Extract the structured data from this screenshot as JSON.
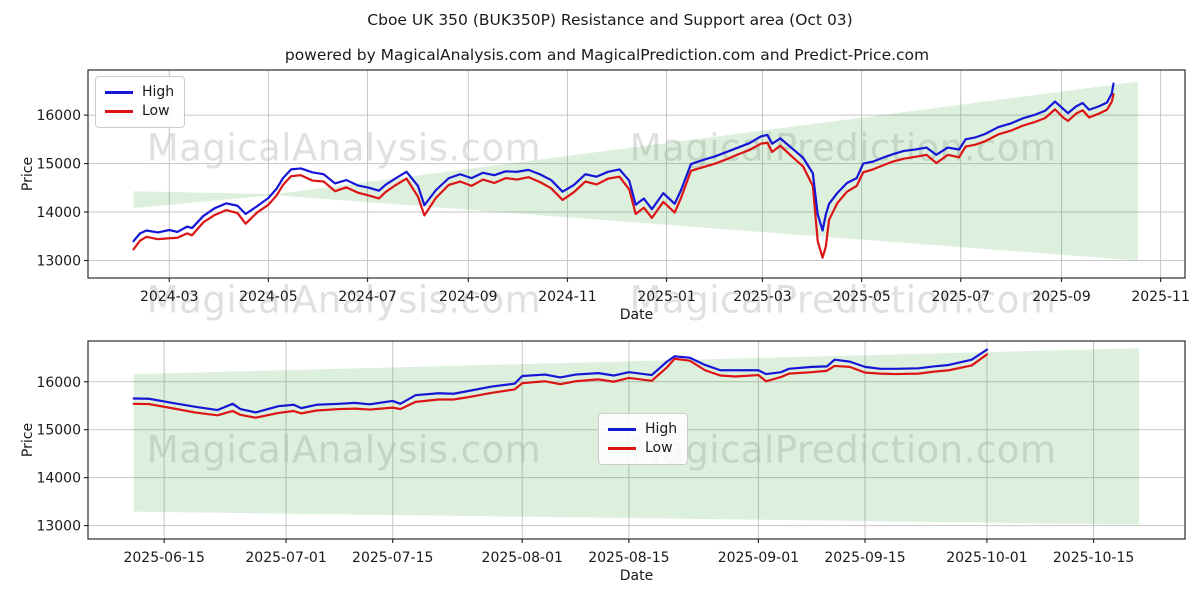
{
  "title": "Cboe UK 350 (BUK350P) Resistance and Support area (Oct 03)",
  "subtitle": "powered by MagicalAnalysis.com and MagicalPrediction.com and Predict-Price.com",
  "watermarks": {
    "left": "MagicalAnalysis.com",
    "right": "MagicalPrediction.com"
  },
  "colors": {
    "high": "#1616d6",
    "low": "#dc1414",
    "band": "rgba(44,160,44,0.16)",
    "grid": "#c6c6c6",
    "spine": "#2b2b2b",
    "text": "#1a1a1a",
    "watermark": "#e0e0e0"
  },
  "chart_data": [
    {
      "type": "line",
      "ylabel": "Price",
      "xlabel": "Date",
      "grid": true,
      "legend_position": "upper-left",
      "x_range": [
        "2024-01-11",
        "2025-11-16"
      ],
      "y_range": [
        12640,
        16930
      ],
      "yticks": [
        13000,
        14000,
        15000,
        16000
      ],
      "xticks": [
        {
          "date": "2024-03-01",
          "label": "2024-03"
        },
        {
          "date": "2024-05-01",
          "label": "2024-05"
        },
        {
          "date": "2024-07-01",
          "label": "2024-07"
        },
        {
          "date": "2024-09-01",
          "label": "2024-09"
        },
        {
          "date": "2024-11-01",
          "label": "2024-11"
        },
        {
          "date": "2025-01-01",
          "label": "2025-01"
        },
        {
          "date": "2025-03-01",
          "label": "2025-03"
        },
        {
          "date": "2025-05-01",
          "label": "2025-05"
        },
        {
          "date": "2025-07-01",
          "label": "2025-07"
        },
        {
          "date": "2025-09-01",
          "label": "2025-09"
        },
        {
          "date": "2025-11-01",
          "label": "2025-11"
        }
      ],
      "band": {
        "name": "resistance-support-area",
        "top": [
          [
            "2024-02-08",
            14430
          ],
          [
            "2024-05-05",
            14370
          ],
          [
            "2025-10-18",
            16690
          ]
        ],
        "bottom": [
          [
            "2024-02-08",
            14080
          ],
          [
            "2024-05-05",
            14350
          ],
          [
            "2025-10-18",
            13000
          ]
        ]
      },
      "x": [
        "2024-02-08",
        "2024-02-12",
        "2024-02-16",
        "2024-02-23",
        "2024-03-01",
        "2024-03-06",
        "2024-03-12",
        "2024-03-15",
        "2024-03-22",
        "2024-03-29",
        "2024-04-05",
        "2024-04-12",
        "2024-04-17",
        "2024-04-24",
        "2024-05-01",
        "2024-05-06",
        "2024-05-10",
        "2024-05-15",
        "2024-05-21",
        "2024-05-28",
        "2024-06-04",
        "2024-06-11",
        "2024-06-18",
        "2024-06-25",
        "2024-07-02",
        "2024-07-08",
        "2024-07-12",
        "2024-07-18",
        "2024-07-25",
        "2024-08-01",
        "2024-08-05",
        "2024-08-12",
        "2024-08-20",
        "2024-08-27",
        "2024-09-03",
        "2024-09-10",
        "2024-09-17",
        "2024-09-24",
        "2024-10-01",
        "2024-10-08",
        "2024-10-15",
        "2024-10-22",
        "2024-10-29",
        "2024-11-05",
        "2024-11-12",
        "2024-11-19",
        "2024-11-26",
        "2024-12-03",
        "2024-12-09",
        "2024-12-13",
        "2024-12-18",
        "2024-12-23",
        "2024-12-30",
        "2025-01-06",
        "2025-01-10",
        "2025-01-16",
        "2025-01-24",
        "2025-01-31",
        "2025-02-07",
        "2025-02-14",
        "2025-02-21",
        "2025-02-28",
        "2025-03-04",
        "2025-03-07",
        "2025-03-12",
        "2025-03-19",
        "2025-03-26",
        "2025-04-01",
        "2025-04-04",
        "2025-04-07",
        "2025-04-09",
        "2025-04-11",
        "2025-04-16",
        "2025-04-22",
        "2025-04-28",
        "2025-05-02",
        "2025-05-08",
        "2025-05-14",
        "2025-05-20",
        "2025-05-27",
        "2025-06-03",
        "2025-06-10",
        "2025-06-16",
        "2025-06-23",
        "2025-06-30",
        "2025-07-04",
        "2025-07-10",
        "2025-07-16",
        "2025-07-24",
        "2025-08-01",
        "2025-08-08",
        "2025-08-15",
        "2025-08-22",
        "2025-08-28",
        "2025-09-02",
        "2025-09-05",
        "2025-09-10",
        "2025-09-14",
        "2025-09-18",
        "2025-09-24",
        "2025-09-29",
        "2025-10-02",
        "2025-10-03"
      ],
      "series": [
        {
          "name": "High",
          "color_key": "high",
          "values": [
            13400,
            13560,
            13620,
            13580,
            13630,
            13590,
            13700,
            13670,
            13920,
            14080,
            14180,
            14130,
            13960,
            14120,
            14290,
            14480,
            14700,
            14880,
            14900,
            14820,
            14780,
            14590,
            14660,
            14550,
            14500,
            14440,
            14560,
            14690,
            14830,
            14540,
            14140,
            14450,
            14700,
            14780,
            14700,
            14810,
            14760,
            14840,
            14830,
            14870,
            14780,
            14660,
            14420,
            14560,
            14780,
            14730,
            14830,
            14880,
            14650,
            14150,
            14280,
            14060,
            14390,
            14170,
            14460,
            14990,
            15080,
            15150,
            15240,
            15330,
            15420,
            15560,
            15590,
            15410,
            15520,
            15320,
            15120,
            14800,
            13950,
            13620,
            13950,
            14170,
            14390,
            14600,
            14700,
            15000,
            15040,
            15120,
            15190,
            15260,
            15290,
            15330,
            15180,
            15330,
            15290,
            15500,
            15540,
            15610,
            15750,
            15830,
            15930,
            16000,
            16090,
            16280,
            16130,
            16040,
            16180,
            16250,
            16110,
            16180,
            16260,
            16450,
            16650
          ]
        },
        {
          "name": "Low",
          "color_key": "low",
          "values": [
            13230,
            13410,
            13490,
            13440,
            13460,
            13470,
            13560,
            13520,
            13790,
            13940,
            14040,
            13980,
            13760,
            13990,
            14150,
            14340,
            14560,
            14740,
            14760,
            14650,
            14630,
            14430,
            14510,
            14400,
            14340,
            14280,
            14410,
            14550,
            14690,
            14320,
            13930,
            14290,
            14560,
            14630,
            14540,
            14670,
            14600,
            14700,
            14670,
            14720,
            14620,
            14490,
            14250,
            14410,
            14630,
            14570,
            14690,
            14730,
            14470,
            13960,
            14090,
            13880,
            14210,
            13990,
            14300,
            14850,
            14930,
            15000,
            15090,
            15190,
            15280,
            15410,
            15430,
            15240,
            15370,
            15150,
            14940,
            14540,
            13400,
            13060,
            13290,
            13840,
            14180,
            14420,
            14540,
            14820,
            14880,
            14960,
            15040,
            15100,
            15140,
            15180,
            15010,
            15180,
            15130,
            15350,
            15390,
            15460,
            15600,
            15680,
            15780,
            15850,
            15940,
            16120,
            15950,
            15880,
            16030,
            16100,
            15950,
            16030,
            16110,
            16280,
            16430
          ]
        }
      ]
    },
    {
      "type": "line",
      "ylabel": "Price",
      "xlabel": "Date",
      "grid": true,
      "legend_position": "center",
      "x_range": [
        "2025-06-05",
        "2025-10-27"
      ],
      "y_range": [
        12720,
        16850
      ],
      "yticks": [
        13000,
        14000,
        15000,
        16000
      ],
      "xticks": [
        {
          "date": "2025-06-15",
          "label": "2025-06-15"
        },
        {
          "date": "2025-07-01",
          "label": "2025-07-01"
        },
        {
          "date": "2025-07-15",
          "label": "2025-07-15"
        },
        {
          "date": "2025-08-01",
          "label": "2025-08-01"
        },
        {
          "date": "2025-08-15",
          "label": "2025-08-15"
        },
        {
          "date": "2025-09-01",
          "label": "2025-09-01"
        },
        {
          "date": "2025-09-15",
          "label": "2025-09-15"
        },
        {
          "date": "2025-10-01",
          "label": "2025-10-01"
        },
        {
          "date": "2025-10-15",
          "label": "2025-10-15"
        }
      ],
      "band": {
        "name": "resistance-support-area",
        "top": [
          [
            "2025-06-11",
            16160
          ],
          [
            "2025-10-21",
            16700
          ]
        ],
        "bottom": [
          [
            "2025-06-11",
            13290
          ],
          [
            "2025-10-21",
            13020
          ]
        ]
      },
      "x": [
        "2025-06-11",
        "2025-06-13",
        "2025-06-16",
        "2025-06-19",
        "2025-06-22",
        "2025-06-24",
        "2025-06-25",
        "2025-06-27",
        "2025-06-30",
        "2025-07-02",
        "2025-07-03",
        "2025-07-05",
        "2025-07-08",
        "2025-07-10",
        "2025-07-12",
        "2025-07-15",
        "2025-07-16",
        "2025-07-18",
        "2025-07-21",
        "2025-07-23",
        "2025-07-25",
        "2025-07-28",
        "2025-07-31",
        "2025-08-01",
        "2025-08-04",
        "2025-08-06",
        "2025-08-08",
        "2025-08-11",
        "2025-08-13",
        "2025-08-15",
        "2025-08-18",
        "2025-08-20",
        "2025-08-21",
        "2025-08-23",
        "2025-08-25",
        "2025-08-27",
        "2025-08-29",
        "2025-09-01",
        "2025-09-02",
        "2025-09-04",
        "2025-09-05",
        "2025-09-08",
        "2025-09-10",
        "2025-09-11",
        "2025-09-13",
        "2025-09-15",
        "2025-09-17",
        "2025-09-19",
        "2025-09-22",
        "2025-09-24",
        "2025-09-26",
        "2025-09-29",
        "2025-10-01"
      ],
      "series": [
        {
          "name": "High",
          "color_key": "high",
          "values": [
            15650,
            15645,
            15560,
            15480,
            15410,
            15540,
            15430,
            15360,
            15490,
            15520,
            15450,
            15520,
            15540,
            15560,
            15530,
            15600,
            15540,
            15720,
            15760,
            15750,
            15810,
            15900,
            15960,
            16120,
            16150,
            16090,
            16150,
            16180,
            16130,
            16200,
            16140,
            16420,
            16530,
            16500,
            16350,
            16240,
            16240,
            16240,
            16160,
            16200,
            16270,
            16310,
            16320,
            16460,
            16420,
            16310,
            16270,
            16270,
            16280,
            16320,
            16350,
            16460,
            16670
          ]
        },
        {
          "name": "Low",
          "color_key": "low",
          "values": [
            15540,
            15535,
            15450,
            15360,
            15300,
            15390,
            15310,
            15250,
            15350,
            15390,
            15340,
            15400,
            15430,
            15440,
            15420,
            15460,
            15430,
            15580,
            15630,
            15630,
            15680,
            15770,
            15840,
            15970,
            16010,
            15950,
            16010,
            16050,
            16000,
            16080,
            16020,
            16300,
            16480,
            16440,
            16240,
            16130,
            16110,
            16140,
            16010,
            16100,
            16170,
            16200,
            16230,
            16330,
            16310,
            16190,
            16170,
            16160,
            16170,
            16210,
            16240,
            16340,
            16570
          ]
        }
      ]
    }
  ]
}
